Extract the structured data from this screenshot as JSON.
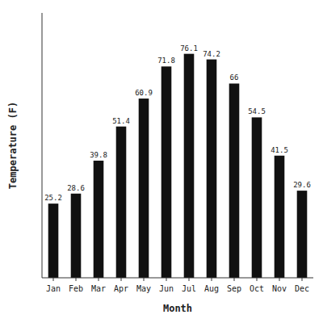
{
  "chart_data": {
    "type": "bar",
    "categories": [
      "Jan",
      "Feb",
      "Mar",
      "Apr",
      "May",
      "Jun",
      "Jul",
      "Aug",
      "Sep",
      "Oct",
      "Nov",
      "Dec"
    ],
    "values": [
      25.2,
      28.6,
      39.8,
      51.4,
      60.9,
      71.8,
      76.1,
      74.2,
      66.0,
      54.5,
      41.5,
      29.6
    ],
    "color": "#111111",
    "xlabel": "Month",
    "ylabel": "Temperature (F)",
    "ylim": [
      0,
      90
    ],
    "grid": false,
    "data_labels": true,
    "tick_labels": "x"
  }
}
